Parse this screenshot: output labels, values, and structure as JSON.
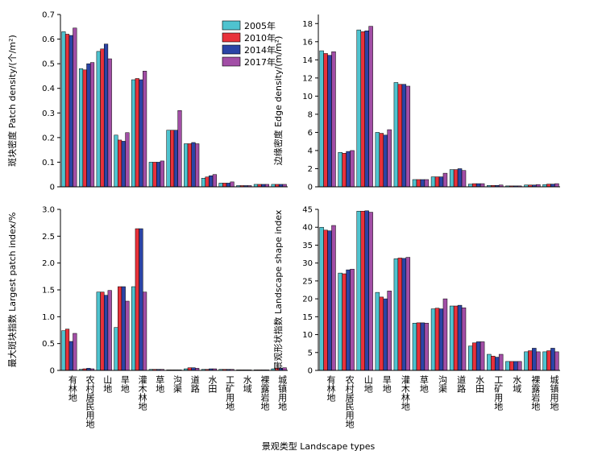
{
  "figure": {
    "xlabel": "景观类型 Landscape types"
  },
  "legend": {
    "items": [
      {
        "label": "2005年",
        "color": "#4fc3cf"
      },
      {
        "label": "2010年",
        "color": "#e8313a"
      },
      {
        "label": "2014年",
        "color": "#2b44a6"
      },
      {
        "label": "2017年",
        "color": "#a24ea6"
      }
    ]
  },
  "chart_data": [
    {
      "type": "bar",
      "ylabel": "斑块密度 Patch density/(个/m²)",
      "ylim": [
        0,
        0.7
      ],
      "yticks": [
        "0",
        "0.1",
        "0.2",
        "0.3",
        "0.4",
        "0.5",
        "0.6",
        "0.7"
      ],
      "categories": [
        "有林地",
        "农村居民用地",
        "山地",
        "旱地",
        "灌木林地",
        "草地",
        "沟渠",
        "道路",
        "水田",
        "工矿用地",
        "水域",
        "裸露岩地",
        "城镇用地"
      ],
      "series": [
        {
          "name": "2005年",
          "values": [
            0.63,
            0.48,
            0.55,
            0.21,
            0.435,
            0.1,
            0.23,
            0.175,
            0.035,
            0.015,
            0.005,
            0.01,
            0.01
          ]
        },
        {
          "name": "2010年",
          "values": [
            0.62,
            0.475,
            0.56,
            0.19,
            0.44,
            0.1,
            0.23,
            0.175,
            0.04,
            0.015,
            0.005,
            0.01,
            0.01
          ]
        },
        {
          "name": "2014年",
          "values": [
            0.615,
            0.5,
            0.58,
            0.185,
            0.435,
            0.1,
            0.23,
            0.18,
            0.045,
            0.015,
            0.005,
            0.01,
            0.01
          ]
        },
        {
          "name": "2017年",
          "values": [
            0.645,
            0.505,
            0.52,
            0.22,
            0.47,
            0.105,
            0.31,
            0.175,
            0.05,
            0.02,
            0.005,
            0.01,
            0.01
          ]
        }
      ]
    },
    {
      "type": "bar",
      "ylabel": "边缘密度 Edge density/(m/m²)",
      "ylim": [
        0,
        19
      ],
      "yticks": [
        "0",
        "2",
        "4",
        "6",
        "8",
        "10",
        "12",
        "14",
        "16",
        "18"
      ],
      "categories": [
        "有林地",
        "农村居民用地",
        "山地",
        "旱地",
        "灌木林地",
        "草地",
        "沟渠",
        "道路",
        "水田",
        "工矿用地",
        "水域",
        "裸露岩地",
        "城镇用地"
      ],
      "series": [
        {
          "name": "2005年",
          "values": [
            15,
            3.8,
            17.3,
            6,
            11.5,
            0.8,
            1.1,
            1.9,
            0.3,
            0.15,
            0.1,
            0.2,
            0.25
          ]
        },
        {
          "name": "2010年",
          "values": [
            14.7,
            3.7,
            17.1,
            5.9,
            11.3,
            0.8,
            1.1,
            1.9,
            0.35,
            0.15,
            0.1,
            0.2,
            0.3
          ]
        },
        {
          "name": "2014年",
          "values": [
            14.5,
            3.9,
            17.2,
            5.7,
            11.3,
            0.8,
            1.1,
            2.0,
            0.35,
            0.15,
            0.1,
            0.2,
            0.3
          ]
        },
        {
          "name": "2017年",
          "values": [
            14.9,
            4.0,
            17.7,
            6.3,
            11.1,
            0.8,
            1.5,
            1.8,
            0.35,
            0.2,
            0.1,
            0.25,
            0.35
          ]
        }
      ]
    },
    {
      "type": "bar",
      "ylabel": "最大斑块指数 Largest patch index/%",
      "ylim": [
        0,
        3.0
      ],
      "yticks": [
        "0",
        "0.5",
        "1.0",
        "1.5",
        "2.0",
        "2.5",
        "3.0"
      ],
      "categories": [
        "有林地",
        "农村居民用地",
        "山地",
        "旱地",
        "灌木林地",
        "草地",
        "沟渠",
        "道路",
        "水田",
        "工矿用地",
        "水域",
        "裸露岩地",
        "城镇用地"
      ],
      "series": [
        {
          "name": "2005年",
          "values": [
            0.74,
            0.02,
            1.46,
            0.8,
            1.56,
            0.02,
            0.01,
            0.03,
            0.02,
            0.02,
            0.01,
            0.01,
            0.03
          ]
        },
        {
          "name": "2010年",
          "values": [
            0.77,
            0.03,
            1.46,
            1.56,
            2.64,
            0.02,
            0.01,
            0.05,
            0.02,
            0.02,
            0.01,
            0.01,
            0.04
          ]
        },
        {
          "name": "2014年",
          "values": [
            0.54,
            0.04,
            1.4,
            1.56,
            2.64,
            0.02,
            0.01,
            0.05,
            0.03,
            0.02,
            0.01,
            0.01,
            0.04
          ]
        },
        {
          "name": "2017年",
          "values": [
            0.69,
            0.03,
            1.49,
            1.29,
            1.46,
            0.02,
            0.01,
            0.04,
            0.03,
            0.02,
            0.01,
            0.01,
            0.05
          ]
        }
      ]
    },
    {
      "type": "bar",
      "ylabel": "景观形状指数 Landscape shape index",
      "ylim": [
        0,
        45
      ],
      "yticks": [
        "0",
        "5",
        "10",
        "15",
        "20",
        "25",
        "30",
        "35",
        "40",
        "45"
      ],
      "categories": [
        "有林地",
        "农村居民用地",
        "山地",
        "旱地",
        "灌木林地",
        "草地",
        "沟渠",
        "道路",
        "水田",
        "工矿用地",
        "水域",
        "裸露岩地",
        "城镇用地"
      ],
      "series": [
        {
          "name": "2005年",
          "values": [
            40,
            27.2,
            44.5,
            21.8,
            31.2,
            13.2,
            17.2,
            18,
            6.8,
            4.5,
            2.5,
            5.2,
            5.2
          ]
        },
        {
          "name": "2010年",
          "values": [
            39.2,
            27,
            44.5,
            20.5,
            31.4,
            13.3,
            17.4,
            18,
            7.7,
            4,
            2.5,
            5.5,
            5.5
          ]
        },
        {
          "name": "2014年",
          "values": [
            39,
            28.1,
            44.6,
            20,
            31.3,
            13.3,
            17.2,
            18.2,
            8,
            3.7,
            2.5,
            6.2,
            6.2
          ]
        },
        {
          "name": "2017年",
          "values": [
            40.5,
            28.3,
            44.2,
            22.2,
            31.6,
            13.2,
            20,
            17.5,
            8,
            4.5,
            2.5,
            5.2,
            5.2
          ]
        }
      ]
    }
  ]
}
